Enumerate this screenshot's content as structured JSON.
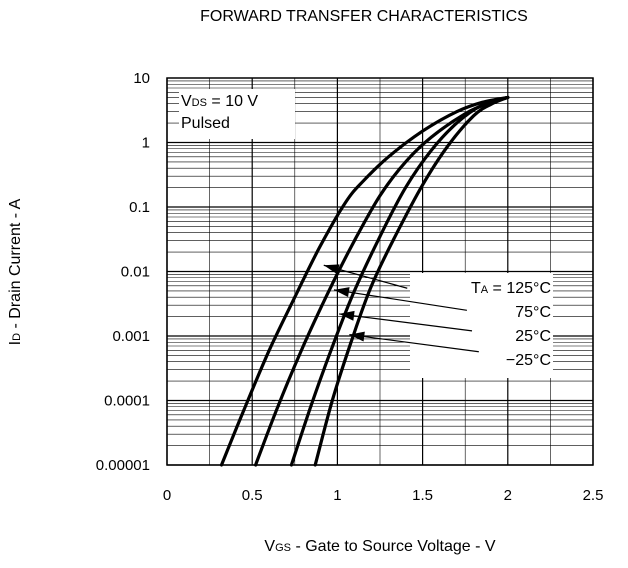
{
  "chart_data": {
    "type": "line",
    "title": "FORWARD TRANSFER CHARACTERISTICS",
    "xlabel": {
      "main": "V",
      "sub": "GS",
      "rest": " - Gate to Source Voltage - V"
    },
    "ylabel": {
      "main": "I",
      "sub": "D",
      "rest": " - Drain Current - A"
    },
    "xlim": [
      0,
      2.5
    ],
    "ylim": [
      1e-05,
      10
    ],
    "yscale": "log",
    "grid": true,
    "xticks": [
      {
        "v": 0,
        "label": "0"
      },
      {
        "v": 0.5,
        "label": "0.5"
      },
      {
        "v": 1,
        "label": "1"
      },
      {
        "v": 1.5,
        "label": "1.5"
      },
      {
        "v": 2,
        "label": "2"
      },
      {
        "v": 2.5,
        "label": "2.5"
      }
    ],
    "yticks": [
      {
        "v": 10,
        "label": "10"
      },
      {
        "v": 1,
        "label": "1"
      },
      {
        "v": 0.1,
        "label": "0.1"
      },
      {
        "v": 0.01,
        "label": "0.01"
      },
      {
        "v": 0.001,
        "label": "0.001"
      },
      {
        "v": 0.0001,
        "label": "0.0001"
      },
      {
        "v": 1e-05,
        "label": "0.00001"
      }
    ],
    "conditions": [
      {
        "main": "V",
        "sub": "DS",
        "rest": " = 10 V"
      },
      {
        "main": "Pulsed",
        "sub": "",
        "rest": ""
      }
    ],
    "series": [
      {
        "name": "TA = 125°C",
        "label": {
          "pre": "T",
          "sub": "A",
          "rest": " = 125°C"
        },
        "x": [
          0.32,
          0.45,
          0.6,
          0.75,
          0.9,
          1.05,
          1.15,
          1.3,
          1.5,
          1.7,
          1.85,
          2.0
        ],
        "y": [
          1e-05,
          7e-05,
          0.0006,
          0.004,
          0.025,
          0.12,
          0.25,
          0.6,
          1.5,
          3.0,
          4.2,
          5.0
        ]
      },
      {
        "name": "75°C",
        "label": {
          "pre": "",
          "sub": "",
          "rest": "75°C"
        },
        "x": [
          0.52,
          0.65,
          0.8,
          0.95,
          1.1,
          1.25,
          1.4,
          1.55,
          1.75,
          1.9,
          2.0
        ],
        "y": [
          1e-05,
          8e-05,
          0.0007,
          0.005,
          0.03,
          0.15,
          0.5,
          1.2,
          2.8,
          4.2,
          5.0
        ]
      },
      {
        "name": "25°C",
        "label": {
          "pre": "",
          "sub": "",
          "rest": "25°C"
        },
        "x": [
          0.73,
          0.85,
          0.98,
          1.1,
          1.25,
          1.4,
          1.55,
          1.7,
          1.85,
          2.0
        ],
        "y": [
          1e-05,
          9e-05,
          0.0008,
          0.005,
          0.035,
          0.2,
          0.75,
          2.0,
          3.8,
          5.0
        ]
      },
      {
        "name": "-25°C",
        "label": {
          "pre": "",
          "sub": "",
          "rest": "−25°C"
        },
        "x": [
          0.87,
          0.97,
          1.08,
          1.2,
          1.35,
          1.5,
          1.65,
          1.8,
          1.9,
          2.0
        ],
        "y": [
          1e-05,
          0.0001,
          0.0008,
          0.006,
          0.04,
          0.22,
          0.9,
          2.6,
          3.9,
          5.0
        ]
      }
    ],
    "legend_arrows": [
      {
        "from_x": 1.41,
        "from_y": 0.0055,
        "to_x": 0.92,
        "to_y": 0.0125
      },
      {
        "from_x": 1.76,
        "from_y": 0.0025,
        "to_x": 0.98,
        "to_y": 0.0052
      },
      {
        "from_x": 1.79,
        "from_y": 0.0012,
        "to_x": 1.01,
        "to_y": 0.0022
      },
      {
        "from_x": 1.83,
        "from_y": 0.00057,
        "to_x": 1.07,
        "to_y": 0.00105
      }
    ]
  }
}
